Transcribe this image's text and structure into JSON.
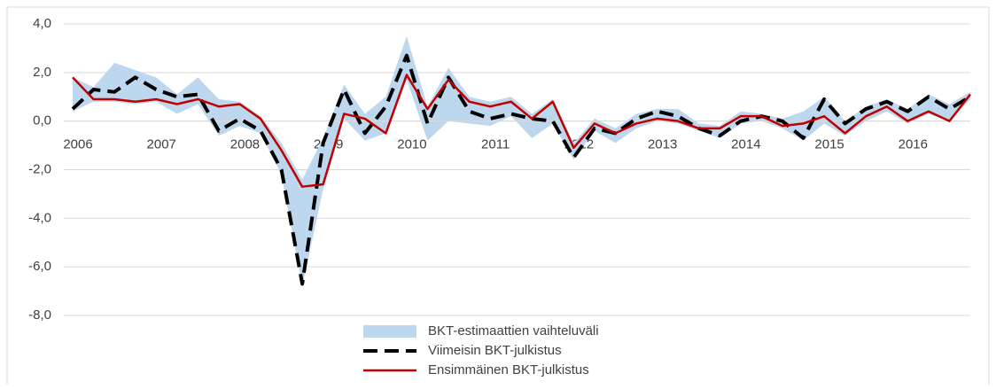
{
  "chart_data": {
    "type": "line",
    "categories": [
      "2006",
      null,
      null,
      null,
      "2007",
      null,
      null,
      null,
      "2008",
      null,
      null,
      null,
      "2009",
      null,
      null,
      null,
      "2010",
      null,
      null,
      null,
      "2011",
      null,
      null,
      null,
      "2012",
      null,
      null,
      null,
      "2013",
      null,
      null,
      null,
      "2014",
      null,
      null,
      null,
      "2015",
      null,
      null,
      null,
      "2016",
      null,
      null,
      null
    ],
    "ylim": [
      -8,
      4
    ],
    "yticks": [
      {
        "value": -8,
        "label": "-8,0"
      },
      {
        "value": -6,
        "label": "-6,0"
      },
      {
        "value": -4,
        "label": "-4,0"
      },
      {
        "value": -2,
        "label": "-2,0"
      },
      {
        "value": 0,
        "label": "0,0"
      },
      {
        "value": 2,
        "label": "2,0"
      },
      {
        "value": 4,
        "label": "4,0"
      }
    ],
    "grid": true,
    "legend": "bottom",
    "series": [
      {
        "name": "BKT-estimaattien vaihteluväli",
        "color": "#bdd7ee",
        "high": [
          1.8,
          1.4,
          2.4,
          2.1,
          1.8,
          1.1,
          1.8,
          0.9,
          0.8,
          0.2,
          -0.9,
          -2.4,
          -0.7,
          1.5,
          0.3,
          1.0,
          3.5,
          0.6,
          2.2,
          1.0,
          0.8,
          1.0,
          0.3,
          0.9,
          -0.9,
          0.1,
          -0.3,
          0.3,
          0.5,
          0.5,
          -0.1,
          -0.2,
          0.4,
          0.3,
          0.1,
          0.4,
          1.0,
          0.0,
          0.6,
          0.9,
          0.5,
          1.1,
          0.7,
          1.2
        ],
        "low": [
          0.4,
          0.8,
          0.8,
          0.7,
          0.8,
          0.3,
          0.7,
          -0.6,
          -0.2,
          -0.5,
          -2.2,
          -6.8,
          -2.8,
          0.1,
          -0.8,
          -0.5,
          1.7,
          -0.8,
          0.0,
          -0.1,
          -0.2,
          0.2,
          -0.7,
          -0.1,
          -1.6,
          -0.4,
          -0.9,
          -0.3,
          0.0,
          -0.1,
          -0.4,
          -0.7,
          -0.1,
          0.0,
          -0.3,
          -0.8,
          -0.1,
          -0.6,
          0.0,
          0.4,
          -0.1,
          0.3,
          0.0,
          0.9
        ]
      },
      {
        "name": "Viimeisin BKT-julkistus",
        "color": "#000000",
        "dashed": true,
        "values": [
          0.5,
          1.3,
          1.2,
          1.8,
          1.3,
          1.0,
          1.1,
          -0.4,
          0.1,
          -0.4,
          -2.0,
          -6.7,
          -0.9,
          1.3,
          -0.5,
          0.6,
          2.7,
          -0.1,
          1.8,
          0.4,
          0.1,
          0.3,
          0.1,
          0.0,
          -1.5,
          -0.3,
          -0.5,
          0.1,
          0.4,
          0.2,
          -0.3,
          -0.6,
          0.0,
          0.2,
          0.0,
          -0.7,
          0.9,
          -0.1,
          0.5,
          0.8,
          0.4,
          1.0,
          0.5,
          1.0
        ]
      },
      {
        "name": "Ensimmäinen BKT-julkistus",
        "color": "#c00000",
        "values": [
          1.8,
          0.9,
          0.9,
          0.8,
          0.9,
          0.7,
          0.9,
          0.6,
          0.7,
          0.1,
          -1.2,
          -2.7,
          -2.6,
          0.3,
          0.1,
          -0.5,
          1.9,
          0.5,
          1.7,
          0.8,
          0.6,
          0.8,
          0.1,
          0.8,
          -1.1,
          -0.1,
          -0.5,
          -0.1,
          0.1,
          0.0,
          -0.3,
          -0.3,
          0.2,
          0.2,
          -0.2,
          -0.1,
          0.2,
          -0.5,
          0.2,
          0.6,
          0.0,
          0.4,
          0.0,
          1.1
        ]
      }
    ]
  }
}
